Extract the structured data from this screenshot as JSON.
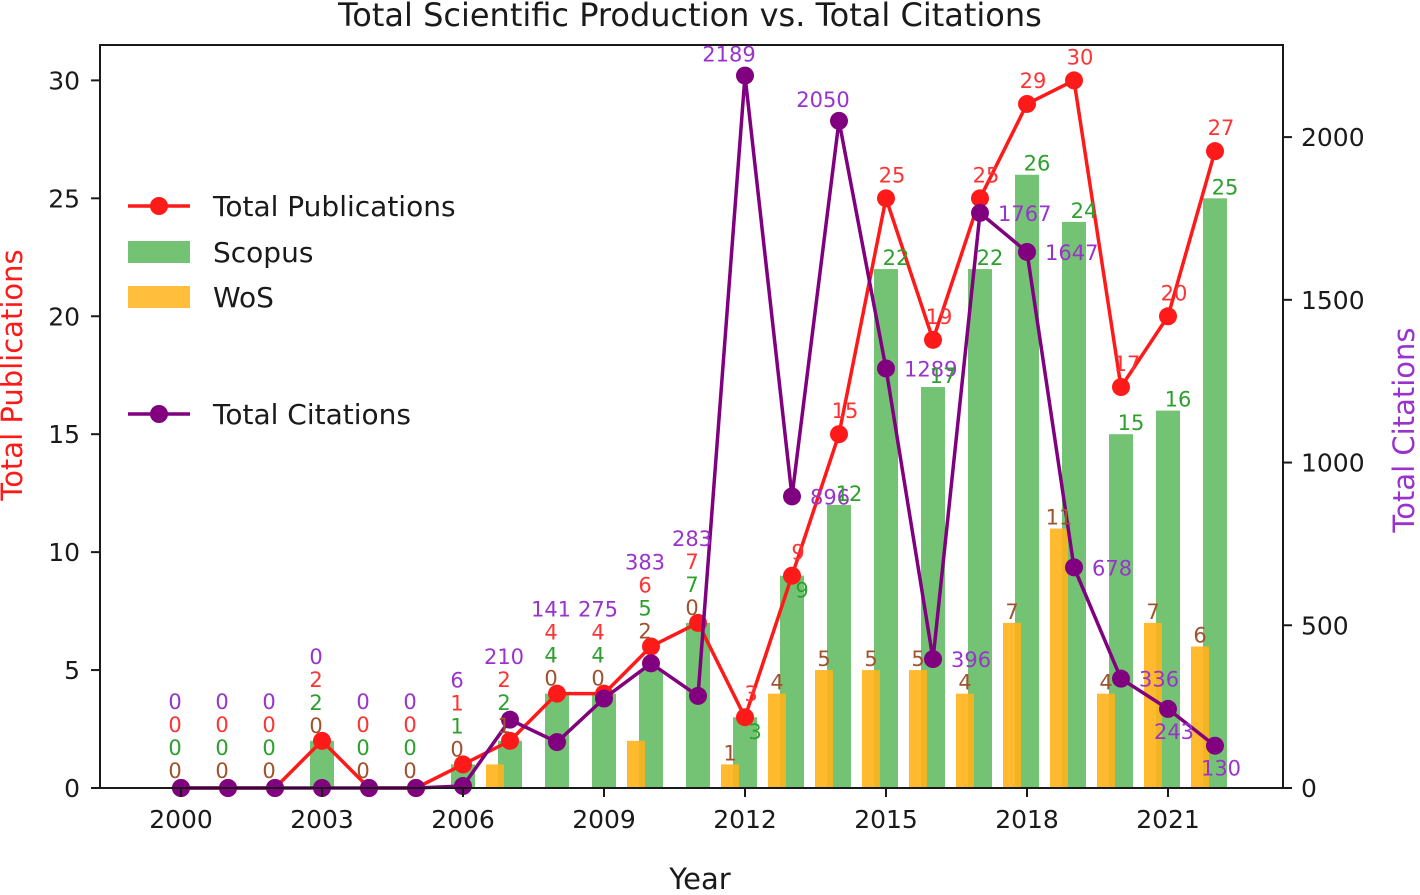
{
  "chart_data": {
    "type": "bar",
    "title": "Total Scientific Production vs. Total Citations",
    "xlabel": "Year",
    "ylabel_left": "Total Publications",
    "ylabel_right": "Total Citations",
    "x": [
      2000,
      2001,
      2002,
      2003,
      2004,
      2005,
      2006,
      2007,
      2008,
      2009,
      2010,
      2011,
      2012,
      2013,
      2014,
      2015,
      2016,
      2017,
      2018,
      2019,
      2020,
      2021,
      2022
    ],
    "x_ticks": [
      "2000",
      "2003",
      "2006",
      "2009",
      "2012",
      "2015",
      "2018",
      "2021"
    ],
    "ylim_left": [
      0,
      31.5
    ],
    "yticks_left": [
      "0",
      "5",
      "10",
      "15",
      "20",
      "25",
      "30"
    ],
    "ylim_right": [
      0,
      2283
    ],
    "yticks_right": [
      "0",
      "500",
      "1000",
      "1500",
      "2000"
    ],
    "legend_position": "upper-left",
    "colors": {
      "total_publications": "#ff1a1a",
      "scopus": "#5cb85c",
      "wos": "#ffb31a",
      "total_citations": "#800080"
    },
    "series": [
      {
        "name": "Total Publications",
        "kind": "line",
        "axis": "left",
        "values": [
          0,
          0,
          0,
          2,
          0,
          0,
          1,
          2,
          4,
          4,
          6,
          7,
          3,
          9,
          15,
          25,
          19,
          25,
          29,
          30,
          17,
          20,
          27
        ],
        "labels": [
          "0",
          "0",
          "0",
          "2",
          "0",
          "0",
          "1",
          "2",
          "4",
          "4",
          "6",
          "7",
          "3",
          "9",
          "15",
          "25",
          "19",
          "25",
          "29",
          "30",
          "17",
          "20",
          "27"
        ]
      },
      {
        "name": "Scopus",
        "kind": "bar",
        "axis": "left",
        "values": [
          0,
          0,
          0,
          2,
          0,
          0,
          1,
          2,
          4,
          4,
          5,
          7,
          3,
          9,
          12,
          22,
          17,
          22,
          26,
          24,
          15,
          16,
          25
        ],
        "labels": [
          "0",
          "0",
          "0",
          "2",
          "0",
          "0",
          "1",
          "2",
          "4",
          "4",
          "5",
          "7",
          "3",
          "9",
          "12",
          "22",
          "17",
          "22",
          "26",
          "24",
          "15",
          "16",
          "25"
        ]
      },
      {
        "name": "WoS",
        "kind": "bar",
        "axis": "left",
        "values": [
          0,
          0,
          0,
          0,
          0,
          0,
          0,
          1,
          0,
          0,
          2,
          0,
          1,
          4,
          5,
          5,
          5,
          4,
          7,
          11,
          4,
          7,
          6
        ],
        "labels": [
          "0",
          "0",
          "0",
          "0",
          "0",
          "0",
          "0",
          "1",
          "0",
          "0",
          "2",
          "0",
          "1",
          "4",
          "5",
          "5",
          "5",
          "4",
          "7",
          "11",
          "4",
          "7",
          "6"
        ]
      },
      {
        "name": "Total Citations",
        "kind": "line",
        "axis": "right",
        "values": [
          0,
          0,
          0,
          0,
          0,
          0,
          6,
          210,
          141,
          275,
          383,
          283,
          2189,
          896,
          2050,
          1289,
          396,
          1767,
          1647,
          678,
          336,
          243,
          130
        ],
        "labels": [
          "0",
          "0",
          "0",
          "0",
          "0",
          "0",
          "6",
          "210",
          "141",
          "275",
          "383",
          "283",
          "2189",
          "896",
          "2050",
          "1289",
          "396",
          "1767",
          "1647",
          "678",
          "336",
          "243",
          "130"
        ]
      }
    ]
  }
}
